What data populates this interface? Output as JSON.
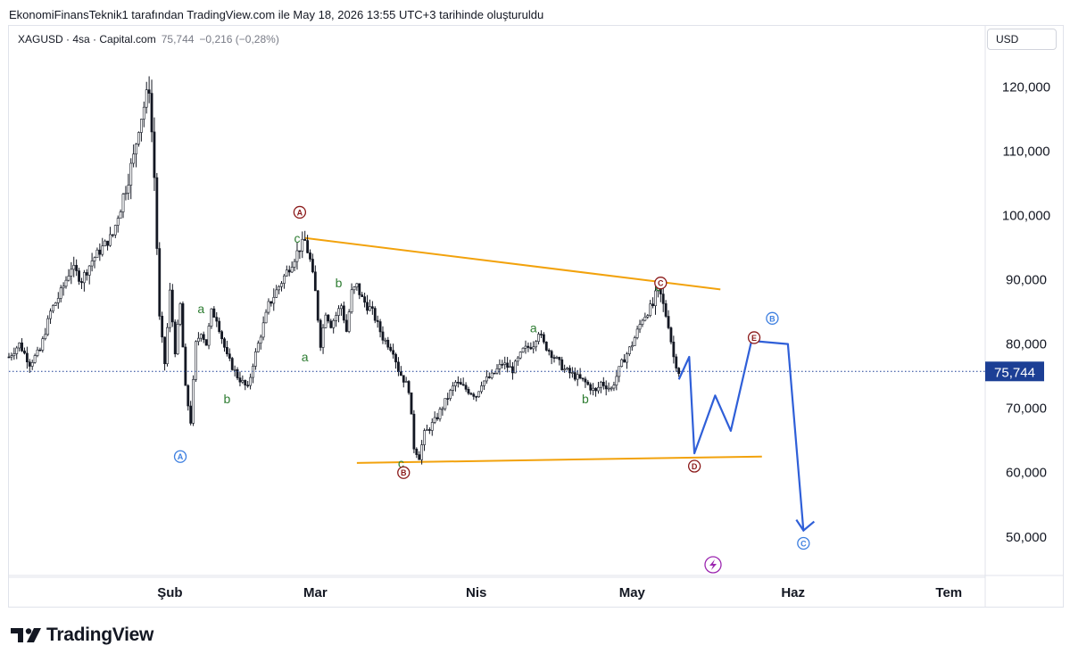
{
  "header": {
    "attribution": "EkonomiFinansTeknik1 tarafından TradingView.com ile May 18, 2026 13:55 UTC+3 tarihinde oluşturuldu"
  },
  "legend": {
    "symbol": "XAGUSD · 4sa · Capital.com",
    "value": "75,744",
    "change": "−0,216 (−0,28%)"
  },
  "currency_button": "USD",
  "brand": "TradingView",
  "colors": {
    "candle": "#131722",
    "trendline": "#f2a20c",
    "projection": "#2f5fd8",
    "label_green": "#2e7d32",
    "circle_red": "#8b1a1a",
    "circle_blue": "#3d7fe0",
    "price_tag": "#1c3f95",
    "last_price_line": "#1c3f95",
    "lightning": "#9c27b0"
  },
  "chart_data": {
    "type": "candlestick",
    "symbol": "XAGUSD",
    "timeframe": "4sa",
    "y_axis_ticks": [
      "120,000",
      "110,000",
      "100,000",
      "90,000",
      "80,000",
      "70,000",
      "60,000",
      "50,000"
    ],
    "y_tick_values": [
      120,
      110,
      100,
      90,
      80,
      70,
      60,
      50
    ],
    "ylim": [
      44.0,
      129.5
    ],
    "x_axis_ticks": [
      "Şub",
      "Mar",
      "Nis",
      "May",
      "Haz",
      "Tem"
    ],
    "x_tick_days": [
      31,
      59,
      90,
      120,
      151,
      181
    ],
    "xlim": [
      0,
      188
    ],
    "last_price": 75.744,
    "last_price_label": "75,744",
    "price_path": [
      [
        0,
        78
      ],
      [
        2,
        80
      ],
      [
        4,
        77
      ],
      [
        6,
        79
      ],
      [
        8,
        85
      ],
      [
        10,
        88
      ],
      [
        12,
        92
      ],
      [
        14,
        90
      ],
      [
        16,
        93
      ],
      [
        18,
        95
      ],
      [
        20,
        97
      ],
      [
        22,
        103
      ],
      [
        24,
        109
      ],
      [
        25,
        114
      ],
      [
        26,
        117
      ],
      [
        27,
        120
      ],
      [
        28,
        106
      ],
      [
        29,
        84
      ],
      [
        30,
        77
      ],
      [
        31,
        88
      ],
      [
        32,
        79
      ],
      [
        33,
        86
      ],
      [
        34,
        73
      ],
      [
        35,
        68
      ],
      [
        36,
        80
      ],
      [
        37,
        82
      ],
      [
        38,
        80
      ],
      [
        39,
        85
      ],
      [
        40,
        84
      ],
      [
        42,
        78
      ],
      [
        44,
        75
      ],
      [
        46,
        73
      ],
      [
        47,
        77
      ],
      [
        48,
        80
      ],
      [
        50,
        86
      ],
      [
        52,
        89
      ],
      [
        54,
        92
      ],
      [
        56,
        95
      ],
      [
        57,
        96
      ],
      [
        58,
        93
      ],
      [
        59,
        88
      ],
      [
        60,
        80
      ],
      [
        61,
        85
      ],
      [
        62,
        83
      ],
      [
        64,
        86
      ],
      [
        65,
        82
      ],
      [
        66,
        88
      ],
      [
        67,
        89
      ],
      [
        68,
        87
      ],
      [
        70,
        85
      ],
      [
        72,
        81
      ],
      [
        74,
        79
      ],
      [
        75,
        76
      ],
      [
        77,
        73
      ],
      [
        78,
        64
      ],
      [
        79,
        62.5
      ],
      [
        80,
        66
      ],
      [
        82,
        68
      ],
      [
        84,
        71
      ],
      [
        86,
        74
      ],
      [
        88,
        73
      ],
      [
        90,
        72
      ],
      [
        91,
        74
      ],
      [
        93,
        75
      ],
      [
        95,
        77
      ],
      [
        97,
        76
      ],
      [
        99,
        79
      ],
      [
        101,
        80
      ],
      [
        102,
        82
      ],
      [
        103,
        80
      ],
      [
        105,
        78
      ],
      [
        107,
        76
      ],
      [
        109,
        75
      ],
      [
        111,
        74
      ],
      [
        113,
        72.5
      ],
      [
        114,
        74
      ],
      [
        116,
        73
      ],
      [
        118,
        77
      ],
      [
        120,
        80
      ],
      [
        122,
        84
      ],
      [
        124,
        86
      ],
      [
        125,
        89
      ],
      [
        126,
        86
      ],
      [
        127,
        83
      ],
      [
        128,
        78
      ],
      [
        129,
        75.7
      ]
    ],
    "trendlines": [
      {
        "name": "upper",
        "points": [
          [
            57,
            96.5
          ],
          [
            137,
            88.5
          ]
        ]
      },
      {
        "name": "lower",
        "points": [
          [
            67,
            61.5
          ],
          [
            145,
            62.5
          ]
        ]
      }
    ],
    "projection": [
      [
        129,
        74.5
      ],
      [
        131,
        78
      ],
      [
        132,
        63
      ],
      [
        136,
        72
      ],
      [
        139,
        66.5
      ],
      [
        143,
        80.5
      ],
      [
        150,
        80
      ],
      [
        153,
        51
      ]
    ],
    "wave_labels": [
      {
        "text": "a",
        "x": 37,
        "y": 85.5,
        "color": "green"
      },
      {
        "text": "b",
        "x": 42,
        "y": 71.5,
        "color": "green"
      },
      {
        "text": "c",
        "x": 55.5,
        "y": 96.5,
        "color": "green"
      },
      {
        "text": "a",
        "x": 57,
        "y": 78,
        "color": "green"
      },
      {
        "text": "b",
        "x": 63.5,
        "y": 89.5,
        "color": "green"
      },
      {
        "text": "c",
        "x": 75.5,
        "y": 61.5,
        "color": "green"
      },
      {
        "text": "a",
        "x": 101,
        "y": 82.5,
        "color": "green"
      },
      {
        "text": "b",
        "x": 111,
        "y": 71.5,
        "color": "green"
      },
      {
        "text": "c",
        "x": 125,
        "y": 89,
        "color": "green"
      }
    ],
    "wave_circles": [
      {
        "text": "A",
        "x": 33,
        "y": 62.5,
        "color": "blue"
      },
      {
        "text": "A",
        "x": 56,
        "y": 100.5,
        "color": "red"
      },
      {
        "text": "B",
        "x": 76,
        "y": 60,
        "color": "red"
      },
      {
        "text": "C",
        "x": 125.5,
        "y": 89.5,
        "color": "red"
      },
      {
        "text": "D",
        "x": 132,
        "y": 61,
        "color": "red"
      },
      {
        "text": "E",
        "x": 143.5,
        "y": 81,
        "color": "red"
      },
      {
        "text": "B",
        "x": 147,
        "y": 84,
        "color": "blue"
      },
      {
        "text": "C",
        "x": 153,
        "y": 49,
        "color": "blue"
      }
    ]
  }
}
